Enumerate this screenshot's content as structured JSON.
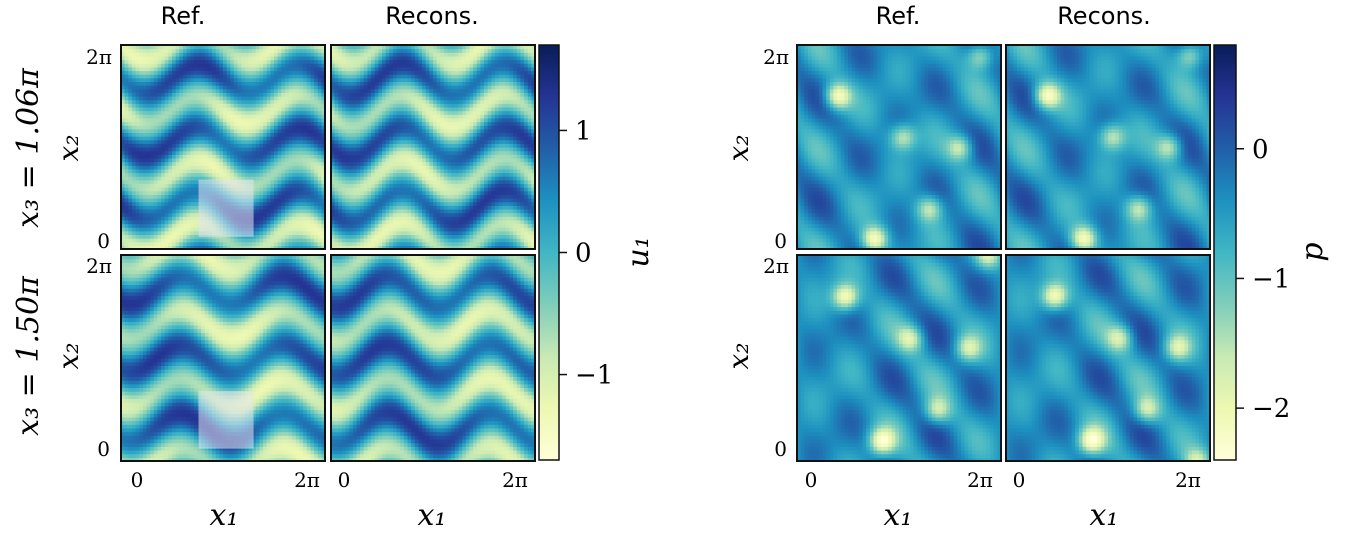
{
  "chart_data": {
    "type": "heatmap",
    "row_labels": [
      "x₃ = 1.06π",
      "x₃ = 1.50π"
    ],
    "panel_groups": [
      {
        "variable": "u₁",
        "column_titles": [
          "Ref.",
          "Recons."
        ],
        "xlabel": "x₁",
        "ylabel": "x₂",
        "x_ticks": [
          "0",
          "2π"
        ],
        "y_ticks": [
          "0",
          "2π"
        ],
        "colorbar": {
          "label": "u₁",
          "range": [
            -1.7,
            1.7
          ],
          "ticks": [
            {
              "value": 1,
              "label": "1"
            },
            {
              "value": 0,
              "label": "0"
            },
            {
              "value": -1,
              "label": "−1"
            }
          ],
          "colormap": "YlGnBu"
        },
        "field_pattern": "horizontal wavy bands",
        "masked_region": "translucent square in reference panels"
      },
      {
        "variable": "p",
        "column_titles": [
          "Ref.",
          "Recons."
        ],
        "xlabel": "x₁",
        "ylabel": "x₂",
        "x_ticks": [
          "0",
          "2π"
        ],
        "y_ticks": [
          "0",
          "2π"
        ],
        "colorbar": {
          "label": "p",
          "range": [
            -2.4,
            0.8
          ],
          "ticks": [
            {
              "value": 0,
              "label": "0"
            },
            {
              "value": -1,
              "label": "−1"
            },
            {
              "value": -2,
              "label": "−2"
            }
          ],
          "colormap": "YlGnBu"
        },
        "field_pattern": "blotchy with localized low-pressure spots"
      }
    ]
  },
  "colors": {
    "cmap_stops": [
      "#ffffd9",
      "#edf8b1",
      "#c7e9b4",
      "#7fcdbb",
      "#41b6c4",
      "#1d91c0",
      "#225ea8",
      "#253494",
      "#081d58"
    ],
    "frame": "#111111"
  }
}
